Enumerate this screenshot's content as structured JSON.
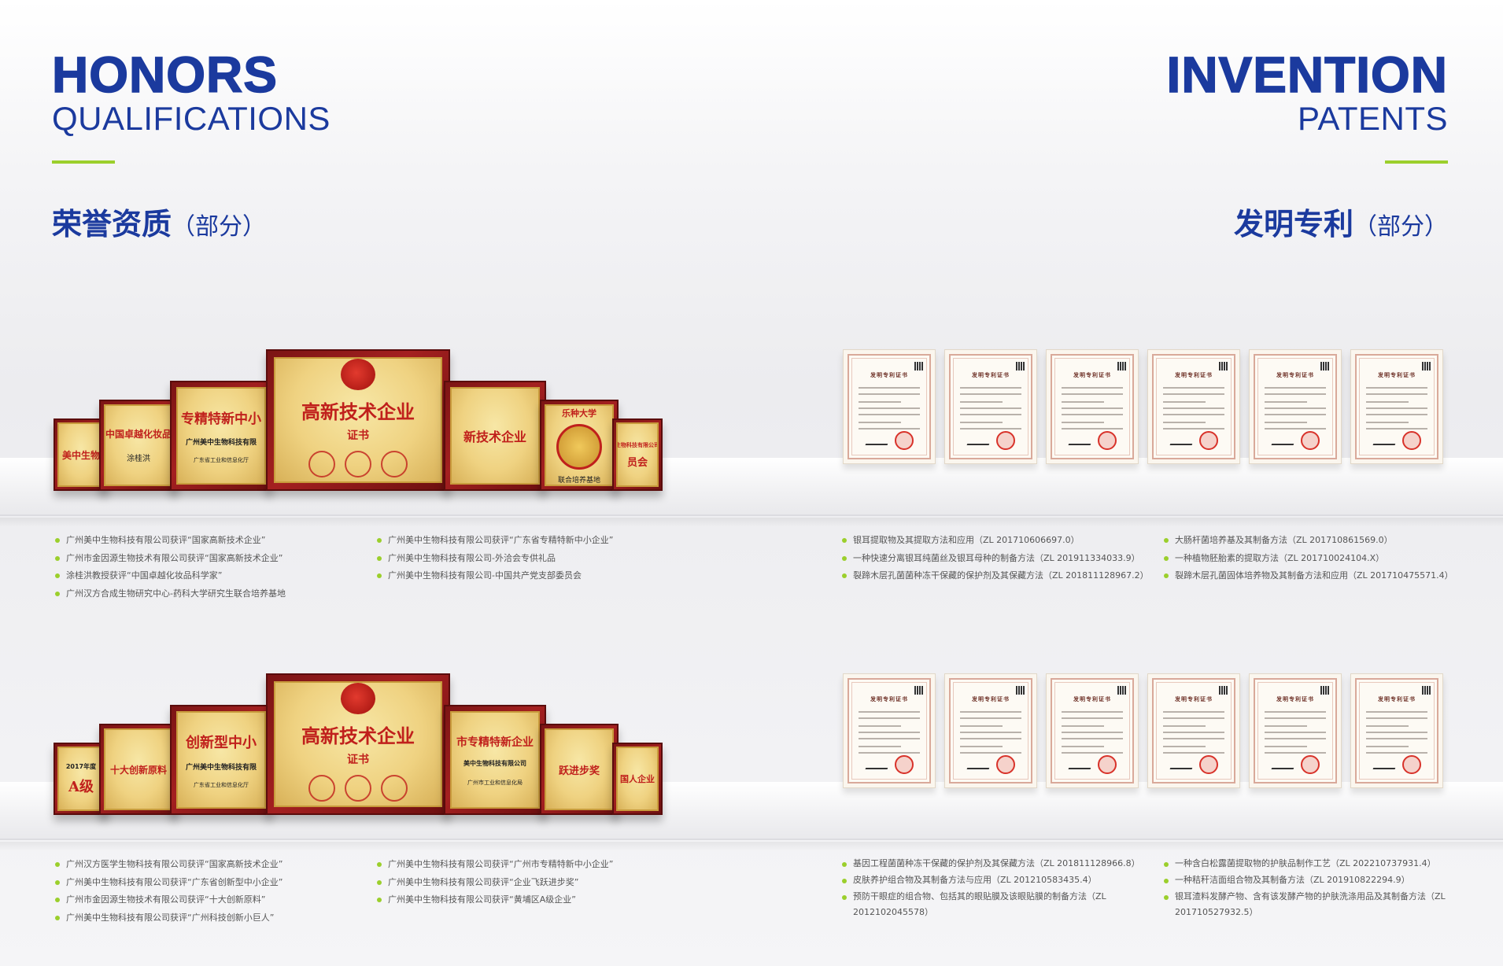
{
  "honors": {
    "title": "HONORS",
    "subtitle": "QUALIFICATIONS",
    "cn_title": "荣誉资质",
    "cn_paren": "（部分）"
  },
  "patents": {
    "title": "INVENTION",
    "subtitle": "PATENTS",
    "cn_title": "发明专利",
    "cn_paren": "（部分）"
  },
  "row1_plaques": {
    "p1_title": "美中生物",
    "p2_title": "中国卓越化妆品",
    "p2_name": "涂桂洪",
    "p3_title": "专精特新中小",
    "p3_company": "广州美中生物科技有限",
    "p3_issuer": "广东省工业和信息化厅",
    "p4_title": "高新技术企业",
    "p4_cert": "证书",
    "p5_title": "新技术企业",
    "p6_title": "乐种大学",
    "p6_text": "联合培养基地",
    "p7_title": "生物科技有限公司",
    "p7_text": "员会"
  },
  "row2_plaques": {
    "p1_year": "2017年度",
    "p1_grade": "A级",
    "p2_title": "十大创新原料",
    "p3_title": "创新型中小",
    "p3_company": "广州美中生物科技有限",
    "p3_issuer": "广东省工业和信息化厅",
    "p4_title": "高新技术企业",
    "p4_cert": "证书",
    "p5_title": "市专精特新企业",
    "p5_company": "美中生物科技有限公司",
    "p5_issuer": "广州市工业和信息化局",
    "p6_title": "跃进步奖",
    "p7_title": "国人企业"
  },
  "patent_cert_title": "发明专利证书",
  "honors_list_1": [
    "广州美中生物科技有限公司获评“国家高新技术企业”",
    "广州市金因源生物技术有限公司获评“国家高新技术企业”",
    "涂桂洪教授获评“中国卓越化妆品科学家”",
    "广州汉方合成生物研究中心-药科大学研究生联合培养基地"
  ],
  "honors_list_2": [
    "广州美中生物科技有限公司获评“广东省专精特新中小企业”",
    "广州美中生物科技有限公司-外洽会专供礼品",
    "广州美中生物科技有限公司-中国共产党支部委员会"
  ],
  "honors_list_3": [
    "广州汉方医学生物科技有限公司获评“国家高新技术企业”",
    "广州美中生物科技有限公司获评“广东省创新型中小企业”",
    "广州市金因源生物技术有限公司获评“十大创新原料”",
    "广州美中生物科技有限公司获评“广州科技创新小巨人”"
  ],
  "honors_list_4": [
    "广州美中生物科技有限公司获评“广州市专精特新中小企业”",
    "广州美中生物科技有限公司获评“企业飞跃进步奖”",
    "广州美中生物科技有限公司获评“黄埔区A级企业”"
  ],
  "patent_list_1": [
    "银耳提取物及其提取方法和应用（ZL 201710606697.0）",
    "一种快速分离银耳纯菌丝及银耳母种的制备方法（ZL 201911334033.9）",
    "裂蹄木层孔菌菌种冻干保藏的保护剂及其保藏方法（ZL 201811128967.2）"
  ],
  "patent_list_2": [
    "大肠杆菌培养基及其制备方法（ZL 201710861569.0）",
    "一种植物胚胎素的提取方法（ZL 201710024104.X）",
    "裂蹄木层孔菌固体培养物及其制备方法和应用（ZL 201710475571.4）"
  ],
  "patent_list_3": [
    "基因工程菌菌种冻干保藏的保护剂及其保藏方法（ZL 201811128966.8）",
    "皮肤养护组合物及其制备方法与应用（ZL 201210583435.4）",
    "预防干眼症的组合物、包括其的眼贴膜及该眼贴膜的制备方法（ZL 2012102045578）"
  ],
  "patent_list_4": [
    "一种含白松露菌提取物的护肤品制作工艺（ZL 202210737931.4）",
    "一种秸秆洁面组合物及其制备方法（ZL 201910822294.9）",
    "银耳渣料发酵产物、含有该发酵产物的护肤洗涤用品及其制备方法（ZL 201710527932.5）"
  ]
}
